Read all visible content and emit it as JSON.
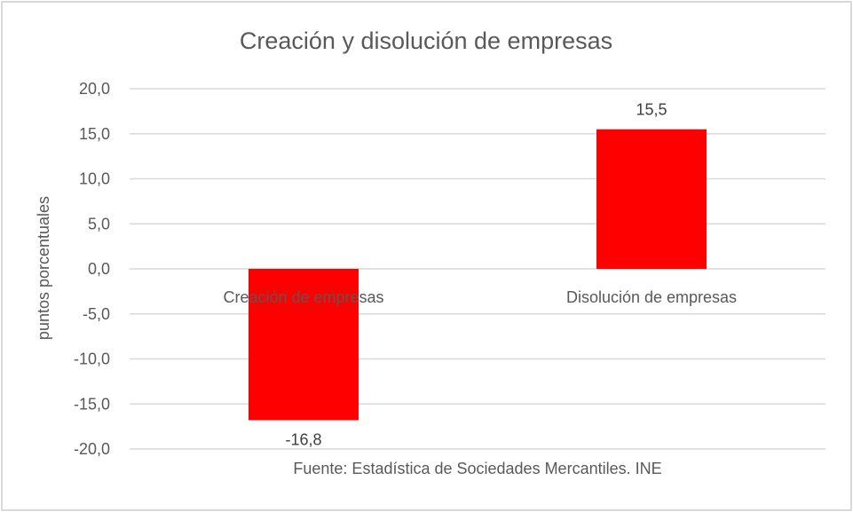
{
  "chart_data": {
    "type": "bar",
    "title": "Creación y disolución de empresas",
    "xlabel": "",
    "ylabel": "puntos porcentuales",
    "categories": [
      "Creación de empresas",
      "Disolución de empresas"
    ],
    "values": [
      -16.8,
      15.5
    ],
    "data_labels": [
      "-16,8",
      "15,5"
    ],
    "ylim": [
      -20,
      20
    ],
    "yticks": [
      20,
      15,
      10,
      5,
      0,
      -5,
      -10,
      -15,
      -20
    ],
    "ytick_labels": [
      "20,0",
      "15,0",
      "10,0",
      "5,0",
      "0,0",
      "-5,0",
      "-10,0",
      "-15,0",
      "-20,0"
    ],
    "grid": true,
    "legend": "none",
    "annotation": "Fuente: Estadística de Sociedades Mercantiles. INE",
    "bar_color": "#ff0000"
  }
}
